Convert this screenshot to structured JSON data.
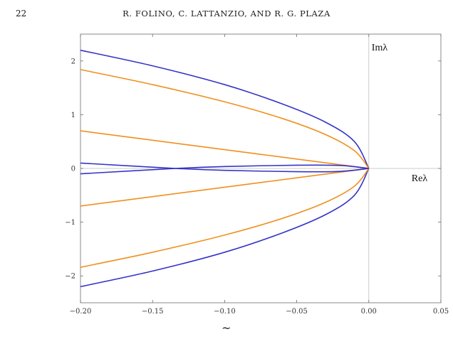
{
  "header": {
    "page_number": "22",
    "running_head": "R. FOLINO, C. LATTANZIO, AND R. G. PLAZA"
  },
  "chart_data": {
    "type": "line",
    "xlabel": "Reλ",
    "ylabel": "Imλ",
    "xlim": [
      -0.2,
      0.05
    ],
    "ylim": [
      -2.5,
      2.5
    ],
    "x_ticks": [
      "−0.20",
      "−0.15",
      "−0.10",
      "−0.05",
      "0.00",
      "0.05"
    ],
    "x_tick_values": [
      -0.2,
      -0.15,
      -0.1,
      -0.05,
      0.0,
      0.05
    ],
    "y_ticks": [
      "−2",
      "−1",
      "0",
      "1",
      "2"
    ],
    "y_tick_values": [
      -2,
      -1,
      0,
      1,
      2
    ],
    "series": [
      {
        "color": "#3434c8",
        "x": [
          -0.2,
          -0.15,
          -0.1,
          -0.06,
          -0.03,
          -0.01,
          0.0
        ],
        "y": [
          2.2,
          1.91,
          1.56,
          1.2,
          0.86,
          0.5,
          0.0
        ]
      },
      {
        "color": "#3434c8",
        "x": [
          -0.2,
          -0.15,
          -0.1,
          -0.06,
          -0.03,
          -0.01,
          0.0
        ],
        "y": [
          -2.2,
          -1.91,
          -1.56,
          -1.2,
          -0.86,
          -0.5,
          0.0
        ]
      },
      {
        "color": "#f0901e",
        "x": [
          -0.2,
          -0.15,
          -0.1,
          -0.06,
          -0.03,
          -0.01,
          0.0
        ],
        "y": [
          1.84,
          1.56,
          1.24,
          0.93,
          0.63,
          0.33,
          0.0
        ]
      },
      {
        "color": "#f0901e",
        "x": [
          -0.2,
          -0.15,
          -0.1,
          -0.06,
          -0.03,
          -0.01,
          0.0
        ],
        "y": [
          -1.84,
          -1.56,
          -1.24,
          -0.93,
          -0.63,
          -0.33,
          0.0
        ]
      },
      {
        "color": "#f0901e",
        "x": [
          -0.2,
          -0.15,
          -0.1,
          -0.05,
          0.0
        ],
        "y": [
          0.7,
          0.525,
          0.35,
          0.175,
          0.0
        ]
      },
      {
        "color": "#f0901e",
        "x": [
          -0.2,
          -0.15,
          -0.1,
          -0.05,
          0.0
        ],
        "y": [
          -0.7,
          -0.525,
          -0.35,
          -0.175,
          0.0
        ]
      },
      {
        "color": "#3434c8",
        "x": [
          -0.2,
          -0.134,
          -0.1,
          -0.05,
          -0.02,
          0.0
        ],
        "y": [
          0.1,
          0.0,
          -0.035,
          -0.06,
          -0.055,
          0.0
        ]
      },
      {
        "color": "#3434c8",
        "x": [
          -0.2,
          -0.134,
          -0.1,
          -0.05,
          -0.02,
          0.0
        ],
        "y": [
          -0.1,
          0.0,
          0.035,
          0.06,
          0.055,
          0.0
        ]
      }
    ]
  },
  "caption_fragment": "~"
}
